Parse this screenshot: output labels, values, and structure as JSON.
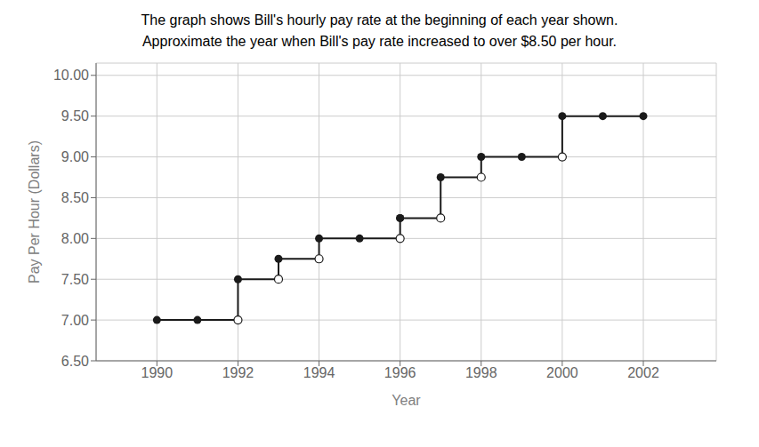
{
  "chart_data": {
    "type": "step",
    "title": "The graph shows Bill's hourly pay rate at the beginning of each year shown.",
    "subtitle": "Approximate the year when Bill's pay rate increased to over $8.50 per hour.",
    "x_label": "Year",
    "y_label": "Pay Per Hour (Dollars)",
    "xlim": [
      1988.5,
      2003.8
    ],
    "ylim": [
      6.5,
      10.15
    ],
    "xticks": [
      1990,
      1992,
      1994,
      1996,
      1998,
      2000,
      2002
    ],
    "yticks": [
      {
        "value": 6.5,
        "label": "6.50"
      },
      {
        "value": 7.0,
        "label": "7.00"
      },
      {
        "value": 7.5,
        "label": "7.50"
      },
      {
        "value": 8.0,
        "label": "8.00"
      },
      {
        "value": 8.5,
        "label": "8.50"
      },
      {
        "value": 9.0,
        "label": "9.00"
      },
      {
        "value": 9.5,
        "label": "9.50"
      },
      {
        "value": 10.0,
        "label": "10.00"
      }
    ],
    "grid": true,
    "color": "#1a1a1a",
    "segments": [
      {
        "x_start": 1990,
        "x_end": 1992,
        "y": 7.0,
        "end_open": true
      },
      {
        "x_start": 1992,
        "x_end": 1993,
        "y": 7.5,
        "end_open": true
      },
      {
        "x_start": 1993,
        "x_end": 1994,
        "y": 7.75,
        "end_open": true
      },
      {
        "x_start": 1994,
        "x_end": 1996,
        "y": 8.0,
        "end_open": true
      },
      {
        "x_start": 1996,
        "x_end": 1997,
        "y": 8.25,
        "end_open": true
      },
      {
        "x_start": 1997,
        "x_end": 1998,
        "y": 8.75,
        "end_open": true
      },
      {
        "x_start": 1998,
        "x_end": 2000,
        "y": 9.0,
        "end_open": true
      },
      {
        "x_start": 2000,
        "x_end": 2002,
        "y": 9.5,
        "end_open": false
      }
    ],
    "points": [
      [
        1991,
        7.0
      ],
      [
        1995,
        8.0
      ],
      [
        1996,
        8.25
      ],
      [
        1999,
        9.0
      ],
      [
        2001,
        9.5
      ]
    ]
  }
}
